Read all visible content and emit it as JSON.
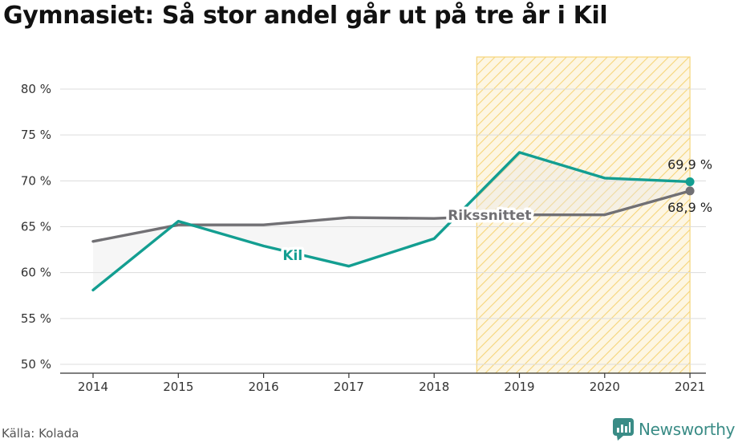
{
  "title": "Gymnasiet: Så stor andel går ut på tre år i Kil",
  "source": "Källa: Kolada",
  "brand": "Newsworthy",
  "colors": {
    "kil": "#139e91",
    "riks": "#717074",
    "highlight_fill": "#fdf6e3",
    "highlight_stripe": "#f6d57a",
    "grid": "#dcdcdc",
    "brand": "#3a8c86"
  },
  "chart_data": {
    "type": "line",
    "title": "Gymnasiet: Så stor andel går ut på tre år i Kil",
    "x": [
      2014,
      2015,
      2016,
      2017,
      2018,
      2019,
      2020,
      2021
    ],
    "x_tick_labels": [
      "2014",
      "2015",
      "2016",
      "2017",
      "2018",
      "2019",
      "2020",
      "2021"
    ],
    "ylim": [
      50,
      83.5
    ],
    "y_ticks": [
      50,
      55,
      60,
      65,
      70,
      75,
      80
    ],
    "y_tick_labels": [
      "50 %",
      "55 %",
      "60 %",
      "65 %",
      "70 %",
      "75 %",
      "80 %"
    ],
    "grid": true,
    "highlight_range": [
      2018.5,
      2021
    ],
    "series": [
      {
        "name": "Kil",
        "values": [
          58.1,
          65.6,
          62.9,
          60.7,
          63.7,
          73.1,
          70.3,
          69.9
        ],
        "end_label": "69,9 %"
      },
      {
        "name": "Rikssnittet",
        "values": [
          63.4,
          65.2,
          65.2,
          66.0,
          65.9,
          66.3,
          66.3,
          68.9
        ],
        "end_label": "68,9 %"
      }
    ]
  }
}
